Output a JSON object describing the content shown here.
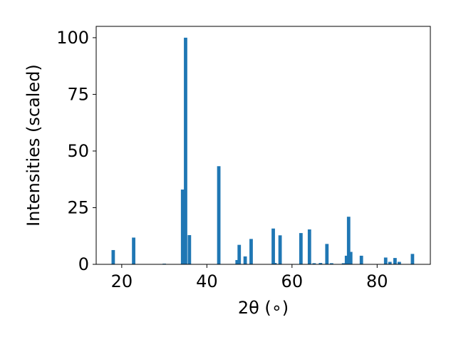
{
  "chart_data": {
    "type": "bar",
    "xlabel": "2θ (∘)",
    "ylabel": "Intensities (scaled)",
    "xlim": [
      14,
      92.5
    ],
    "ylim": [
      0,
      105
    ],
    "xticks": [
      20,
      40,
      60,
      80
    ],
    "yticks": [
      0,
      25,
      50,
      75,
      100
    ],
    "bar_width": 0.8,
    "grid": false,
    "legend": "none",
    "color": "#1f77b4",
    "x": [
      18.0,
      22.8,
      30.0,
      34.3,
      35.0,
      35.9,
      42.8,
      47.1,
      47.6,
      49.0,
      50.4,
      55.6,
      56.0,
      57.2,
      62.1,
      64.1,
      65.2,
      66.7,
      68.2,
      69.3,
      72.1,
      72.8,
      73.3,
      73.8,
      76.3,
      82.0,
      83.0,
      84.2,
      85.2,
      88.3
    ],
    "values": [
      6.3,
      11.8,
      0.3,
      33.0,
      100.0,
      12.9,
      43.3,
      1.9,
      8.6,
      3.5,
      11.2,
      15.8,
      0.6,
      12.8,
      13.8,
      15.4,
      0.5,
      0.6,
      9.0,
      0.5,
      0.5,
      3.8,
      21.0,
      5.5,
      3.8,
      3.0,
      1.1,
      2.8,
      1.1,
      4.6
    ]
  }
}
